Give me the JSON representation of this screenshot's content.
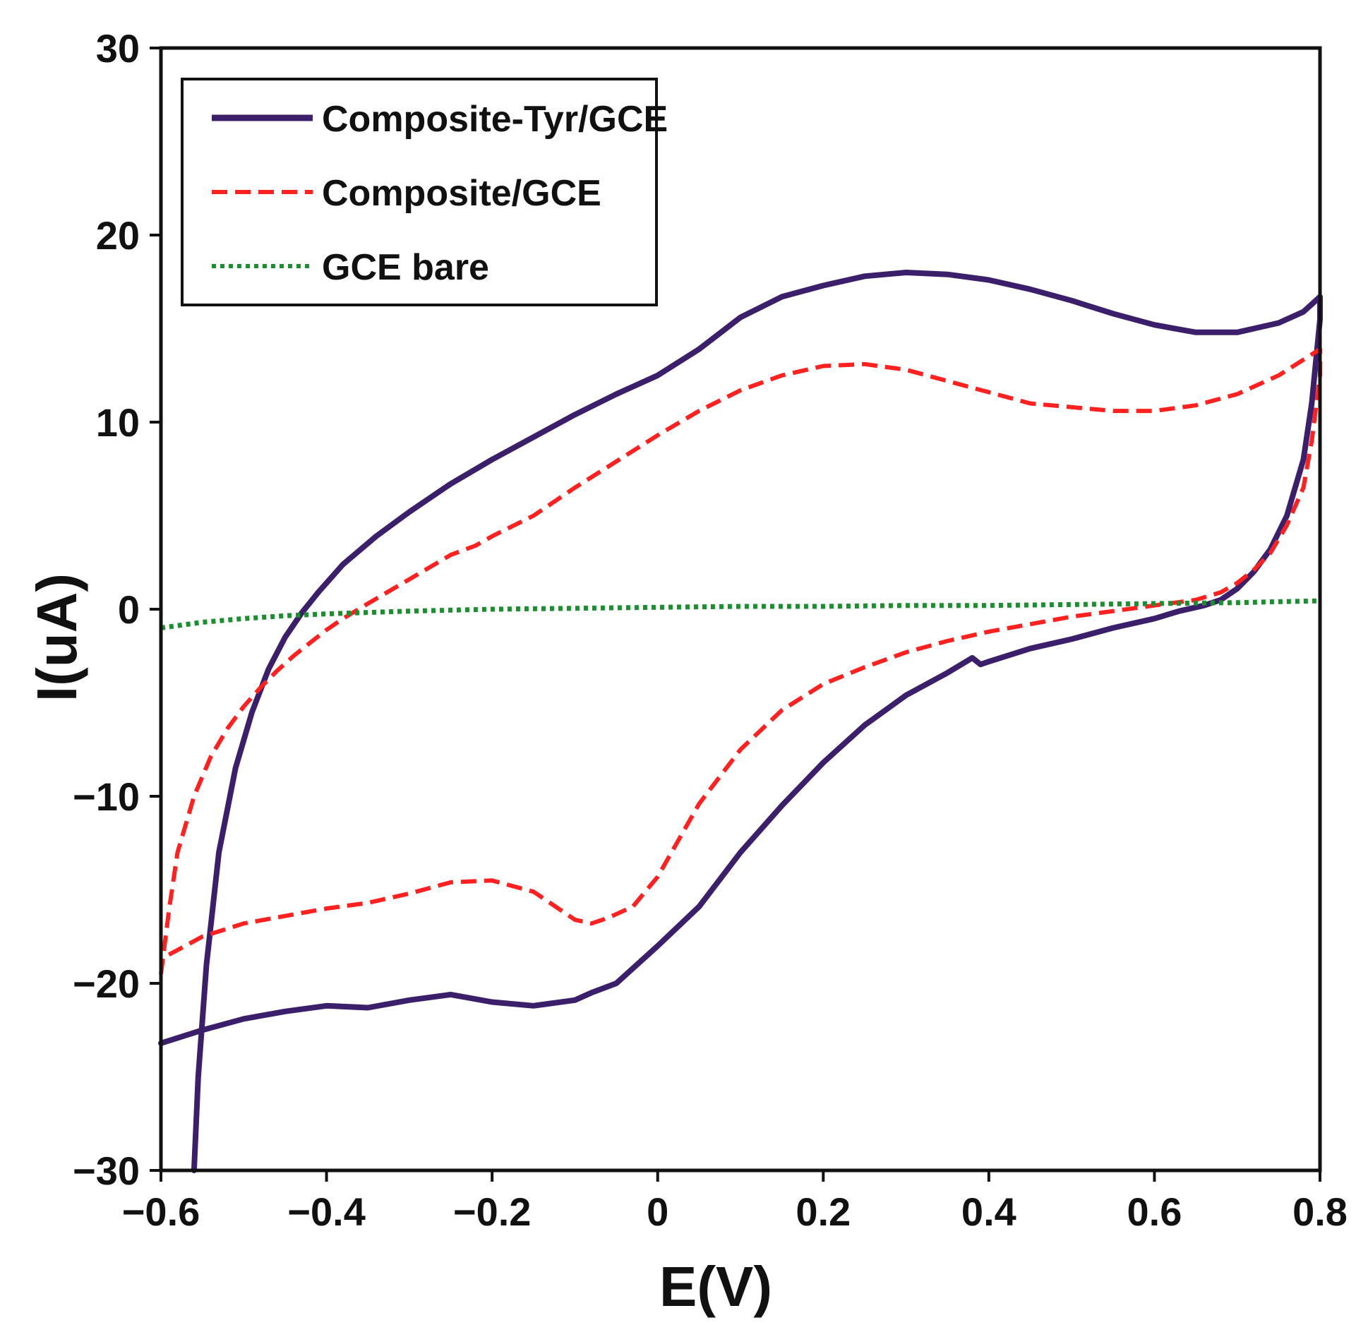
{
  "chart_data": {
    "type": "line",
    "title": "",
    "xlabel": "E(V)",
    "ylabel": "I(uA)",
    "xlim": [
      -0.6,
      0.8
    ],
    "ylim": [
      -30,
      30
    ],
    "xticks": [
      -0.6,
      -0.4,
      -0.2,
      0,
      0.2,
      0.4,
      0.6,
      0.8
    ],
    "xtick_labels": [
      "−0.6",
      "−0.4",
      "−0.2",
      "0",
      "0.2",
      "0.4",
      "0.6",
      "0.8"
    ],
    "yticks": [
      -30,
      -20,
      -10,
      0,
      10,
      20,
      30
    ],
    "ytick_labels": [
      "−30",
      "−20",
      "−10",
      "0",
      "10",
      "20",
      "30"
    ],
    "grid": false,
    "legend_position": "top-left",
    "series": [
      {
        "name": "Composite-Tyr/GCE",
        "color": "#3b1f6b",
        "style": "solid",
        "x": [
          -0.56,
          -0.555,
          -0.545,
          -0.53,
          -0.51,
          -0.49,
          -0.47,
          -0.45,
          -0.43,
          -0.41,
          -0.38,
          -0.34,
          -0.3,
          -0.25,
          -0.2,
          -0.15,
          -0.1,
          -0.05,
          0,
          0.05,
          0.1,
          0.15,
          0.2,
          0.25,
          0.3,
          0.35,
          0.4,
          0.45,
          0.5,
          0.55,
          0.6,
          0.65,
          0.7,
          0.75,
          0.78,
          0.8,
          0.8,
          0.79,
          0.78,
          0.76,
          0.74,
          0.72,
          0.7,
          0.68,
          0.66,
          0.63,
          0.6,
          0.55,
          0.5,
          0.45,
          0.4,
          0.39,
          0.38,
          0.35,
          0.3,
          0.25,
          0.2,
          0.15,
          0.1,
          0.05,
          0,
          -0.05,
          -0.08,
          -0.1,
          -0.15,
          -0.2,
          -0.25,
          -0.3,
          -0.35,
          -0.4,
          -0.45,
          -0.5,
          -0.55,
          -0.6
        ],
        "y": [
          -30,
          -25,
          -19,
          -13,
          -8.5,
          -5.5,
          -3.2,
          -1.5,
          -0.2,
          0.9,
          2.4,
          3.9,
          5.2,
          6.7,
          8.0,
          9.2,
          10.4,
          11.5,
          12.5,
          13.9,
          15.6,
          16.7,
          17.3,
          17.8,
          18.0,
          17.9,
          17.6,
          17.1,
          16.5,
          15.8,
          15.2,
          14.8,
          14.8,
          15.3,
          15.9,
          16.7,
          15.5,
          11.0,
          8.0,
          5.0,
          3.2,
          2.0,
          1.1,
          0.5,
          0.2,
          -0.1,
          -0.5,
          -1.0,
          -1.6,
          -2.1,
          -2.8,
          -2.95,
          -2.6,
          -3.4,
          -4.6,
          -6.2,
          -8.2,
          -10.5,
          -13.0,
          -15.9,
          -18.0,
          -20.0,
          -20.5,
          -20.9,
          -21.2,
          -21.0,
          -20.6,
          -20.9,
          -21.3,
          -21.2,
          -21.5,
          -21.9,
          -22.5,
          -23.2
        ]
      },
      {
        "name": "Composite/GCE",
        "color": "#ff2020",
        "style": "dashed",
        "x": [
          -0.6,
          -0.59,
          -0.58,
          -0.56,
          -0.54,
          -0.52,
          -0.5,
          -0.48,
          -0.46,
          -0.44,
          -0.42,
          -0.4,
          -0.38,
          -0.35,
          -0.3,
          -0.25,
          -0.22,
          -0.2,
          -0.15,
          -0.1,
          -0.05,
          0,
          0.05,
          0.1,
          0.15,
          0.2,
          0.25,
          0.3,
          0.35,
          0.4,
          0.45,
          0.5,
          0.55,
          0.6,
          0.65,
          0.7,
          0.75,
          0.8,
          0.8,
          0.79,
          0.78,
          0.76,
          0.74,
          0.72,
          0.7,
          0.68,
          0.65,
          0.6,
          0.55,
          0.5,
          0.45,
          0.4,
          0.35,
          0.3,
          0.25,
          0.2,
          0.15,
          0.1,
          0.05,
          0,
          -0.03,
          -0.06,
          -0.08,
          -0.1,
          -0.15,
          -0.2,
          -0.25,
          -0.3,
          -0.35,
          -0.4,
          -0.45,
          -0.5,
          -0.55,
          -0.6
        ],
        "y": [
          -19.5,
          -16,
          -13,
          -10,
          -7.9,
          -6.4,
          -5.2,
          -4.2,
          -3.3,
          -2.5,
          -1.8,
          -1.1,
          -0.5,
          0.3,
          1.6,
          2.9,
          3.4,
          3.9,
          5.0,
          6.5,
          7.9,
          9.3,
          10.6,
          11.7,
          12.5,
          13.0,
          13.1,
          12.8,
          12.2,
          11.6,
          11.0,
          10.8,
          10.6,
          10.6,
          10.9,
          11.5,
          12.5,
          13.9,
          12.5,
          9.0,
          6.5,
          4.5,
          3.0,
          2.1,
          1.4,
          0.9,
          0.5,
          0.2,
          -0.1,
          -0.4,
          -0.8,
          -1.2,
          -1.7,
          -2.3,
          -3.1,
          -4.0,
          -5.4,
          -7.5,
          -10.4,
          -14.3,
          -15.9,
          -16.5,
          -16.8,
          -16.6,
          -15.1,
          -14.5,
          -14.6,
          -15.2,
          -15.7,
          -16.0,
          -16.4,
          -16.8,
          -17.5,
          -18.7
        ]
      },
      {
        "name": "GCE bare",
        "color": "#1a8f2e",
        "style": "dotted",
        "x": [
          -0.6,
          -0.55,
          -0.5,
          -0.45,
          -0.4,
          -0.3,
          -0.2,
          -0.1,
          0,
          0.1,
          0.2,
          0.3,
          0.4,
          0.5,
          0.6,
          0.7,
          0.8
        ],
        "y": [
          -1.0,
          -0.7,
          -0.5,
          -0.35,
          -0.25,
          -0.1,
          0.0,
          0.05,
          0.1,
          0.15,
          0.15,
          0.2,
          0.2,
          0.25,
          0.3,
          0.35,
          0.45
        ]
      }
    ]
  }
}
